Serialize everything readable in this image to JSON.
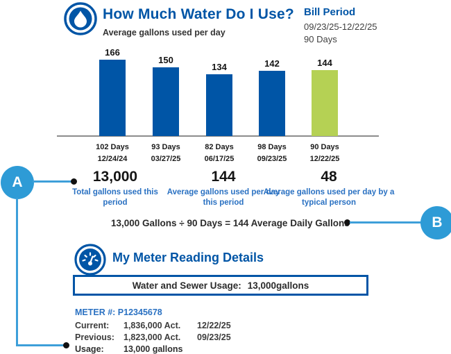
{
  "colors": {
    "brand_blue": "#0055a6",
    "accent_blue": "#2e9bd6",
    "connector_blue": "#3d9fd9",
    "green": "#b5d154",
    "label_blue": "#2a71c2",
    "axis_gray": "#8c8c8c"
  },
  "header": {
    "title": "How Much Water Do I Use?",
    "subtitle": "Average gallons used per day"
  },
  "bill_period": {
    "title": "Bill Period",
    "range": "09/23/25-12/22/25",
    "days": "90 Days"
  },
  "chart_data": {
    "type": "bar",
    "title": "How Much Water Do I Use?",
    "subtitle": "Average gallons used per day",
    "ylabel": "Average gallons used per day",
    "categories": [
      "102 Days 12/24/24",
      "93 Days 03/27/25",
      "82 Days 06/17/25",
      "98 Days 09/23/25",
      "90 Days 12/22/25"
    ],
    "values": [
      166,
      150,
      134,
      142,
      144
    ],
    "bar_colors": [
      "#0055a6",
      "#0055a6",
      "#0055a6",
      "#0055a6",
      "#b5d154"
    ],
    "ylim": [
      0,
      175
    ],
    "grid": false,
    "bars": [
      {
        "value": "166",
        "days": "102 Days",
        "date": "12/24/24"
      },
      {
        "value": "150",
        "days": "93 Days",
        "date": "03/27/25"
      },
      {
        "value": "134",
        "days": "82 Days",
        "date": "06/17/25"
      },
      {
        "value": "142",
        "days": "98 Days",
        "date": "09/23/25"
      },
      {
        "value": "144",
        "days": "90 Days",
        "date": "12/22/25"
      }
    ]
  },
  "stats": [
    {
      "value": "13,000",
      "label": "Total gallons used this period"
    },
    {
      "value": "144",
      "label": "Average gallons used per day this period"
    },
    {
      "value": "48",
      "label": "Average gallons used per day by a typical person"
    }
  ],
  "formula": "13,000 Gallons ÷ 90 Days = 144 Average Daily Gallons",
  "callouts": {
    "a": "A",
    "b": "B"
  },
  "meter": {
    "title": "My Meter Reading Details",
    "usage_box_label": "Water and Sewer Usage:",
    "usage_box_value": "13,000gallons",
    "meter_number": "METER #: P12345678",
    "rows": [
      {
        "label": "Current:",
        "value": "1,836,000 Act.",
        "date": "12/22/25"
      },
      {
        "label": "Previous:",
        "value": "1,823,000 Act.",
        "date": "09/23/25"
      },
      {
        "label": "Usage:",
        "value": "13,000 gallons",
        "date": ""
      }
    ]
  }
}
